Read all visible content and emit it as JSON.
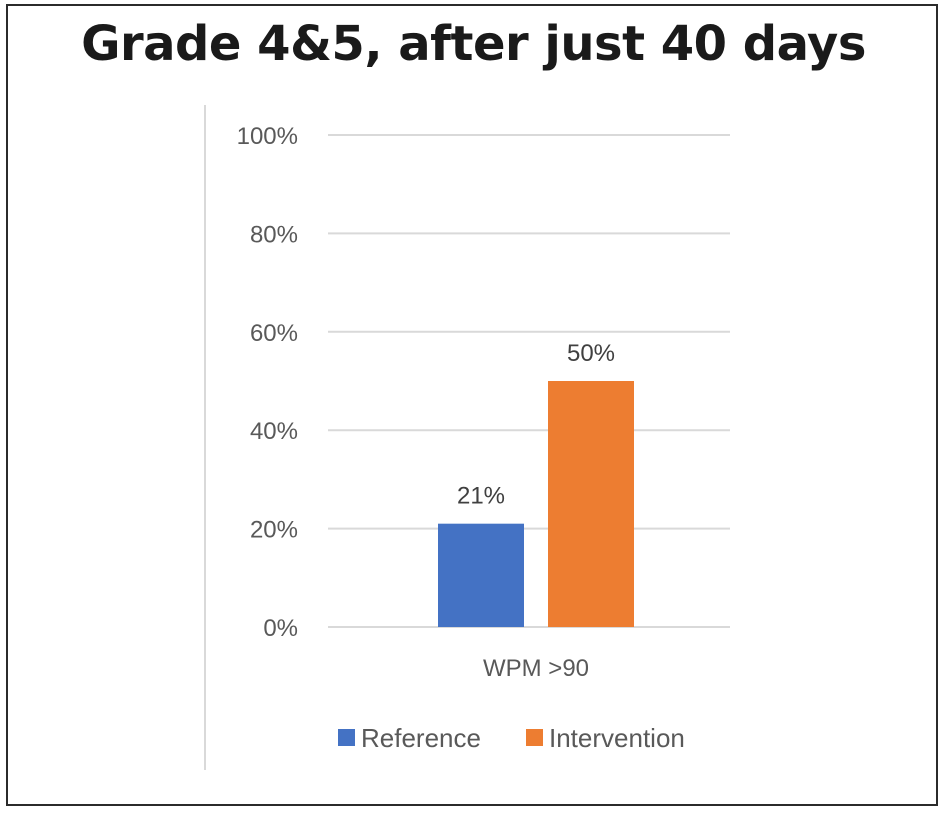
{
  "title": "Grade 4&5, after just 40 days",
  "chart_data": {
    "type": "bar",
    "title": "Grade 4&5, after just 40 days",
    "categories": [
      "WPM >90"
    ],
    "series": [
      {
        "name": "Reference",
        "values": [
          21
        ],
        "color": "#4472C4",
        "label": "21%"
      },
      {
        "name": "Intervention",
        "values": [
          50
        ],
        "color": "#ED7D31",
        "label": "50%"
      }
    ],
    "ylim": [
      0,
      100
    ],
    "yticks": [
      "0%",
      "20%",
      "40%",
      "60%",
      "80%",
      "100%"
    ],
    "grid": true,
    "legend_position": "bottom",
    "xlabel": "",
    "ylabel": ""
  }
}
